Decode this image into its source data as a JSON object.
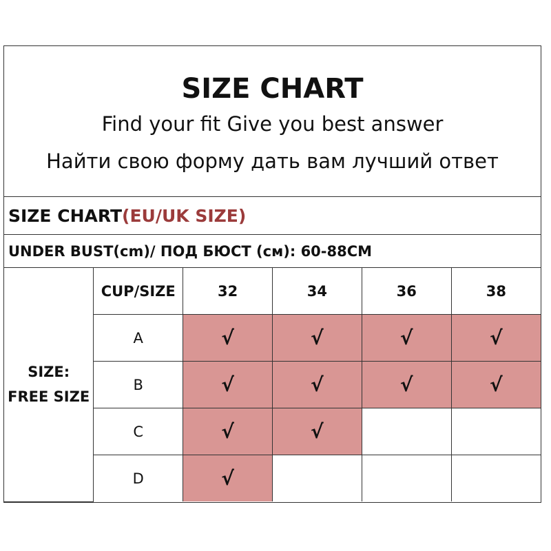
{
  "header": {
    "title": "SIZE CHART",
    "subtitle_en": "Find your fit Give you best answer",
    "subtitle_ru": "Найти свою форму дать вам лучший ответ"
  },
  "size_chart_row": {
    "label": "SIZE CHART",
    "accent": "(EU/UK SIZE)",
    "accent_color": "#9b3b3b"
  },
  "under_bust_row": {
    "label": "UNDER BUST(cm)/ ПОД БЮСТ (см): 60-88CM"
  },
  "table": {
    "side_label_1": "SIZE:",
    "side_label_2": "FREE SIZE",
    "corner": "CUP/SIZE",
    "columns": [
      "32",
      "34",
      "36",
      "38"
    ],
    "check_mark": "√",
    "highlight_color": "#d99694",
    "rows": [
      {
        "cup": "A",
        "available": [
          true,
          true,
          true,
          true
        ]
      },
      {
        "cup": "B",
        "available": [
          true,
          true,
          true,
          true
        ]
      },
      {
        "cup": "C",
        "available": [
          true,
          true,
          false,
          false
        ]
      },
      {
        "cup": "D",
        "available": [
          true,
          false,
          false,
          false
        ]
      }
    ]
  }
}
